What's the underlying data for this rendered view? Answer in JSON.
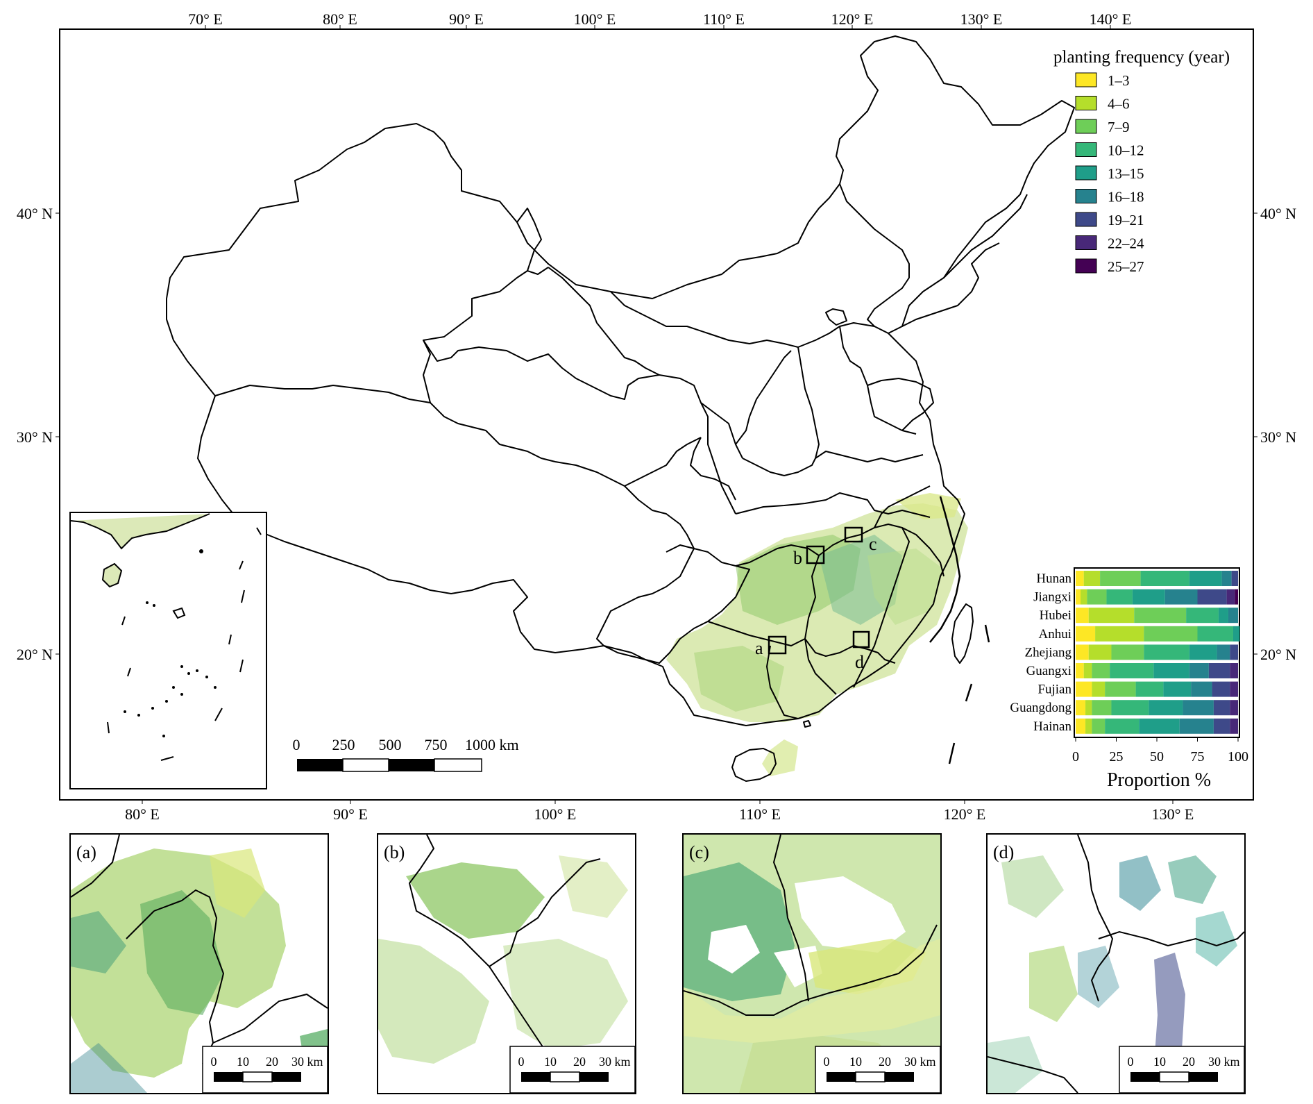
{
  "main_map": {
    "top_lon_ticks": [
      "70° E",
      "80° E",
      "90° E",
      "100° E",
      "110° E",
      "120° E",
      "130° E",
      "140° E"
    ],
    "bottom_lon_ticks": [
      "80° E",
      "90° E",
      "100° E",
      "110° E",
      "120° E",
      "130° E"
    ],
    "left_lat_ticks": [
      "40° N",
      "30° N",
      "20° N"
    ],
    "right_lat_ticks": [
      "40° N",
      "30° N",
      "20° N"
    ],
    "site_markers": [
      "a",
      "b",
      "c",
      "d"
    ],
    "scalebar": {
      "ticks": [
        "0",
        "250",
        "500",
        "750",
        "1000 km"
      ]
    }
  },
  "legend": {
    "title": "planting frequency (year)",
    "items": [
      {
        "label": "1–3",
        "color": "#fde725"
      },
      {
        "label": "4–6",
        "color": "#b5de2b"
      },
      {
        "label": "7–9",
        "color": "#6ece58"
      },
      {
        "label": "10–12",
        "color": "#35b779"
      },
      {
        "label": "13–15",
        "color": "#1f9e89"
      },
      {
        "label": "16–18",
        "color": "#26828e"
      },
      {
        "label": "19–21",
        "color": "#3e4989"
      },
      {
        "label": "22–24",
        "color": "#482878"
      },
      {
        "label": "25–27",
        "color": "#440154"
      }
    ]
  },
  "chart_data": {
    "type": "bar",
    "orientation": "horizontal",
    "stacked": true,
    "categories": [
      "Hunan",
      "Jiangxi",
      "Hubei",
      "Anhui",
      "Zhejiang",
      "Guangxi",
      "Fujian",
      "Guangdong",
      "Hainan"
    ],
    "series": [
      {
        "name": "1–3",
        "values": [
          5,
          3,
          8,
          12,
          8,
          5,
          10,
          6,
          6
        ]
      },
      {
        "name": "4–6",
        "values": [
          10,
          4,
          28,
          30,
          14,
          5,
          8,
          4,
          4
        ]
      },
      {
        "name": "7–9",
        "values": [
          25,
          12,
          32,
          33,
          20,
          11,
          19,
          12,
          8
        ]
      },
      {
        "name": "10–12",
        "values": [
          30,
          16,
          20,
          22,
          28,
          27,
          17,
          23,
          21
        ]
      },
      {
        "name": "13–15",
        "values": [
          20,
          20,
          6,
          4,
          17,
          22,
          17,
          21,
          25
        ]
      },
      {
        "name": "16–18",
        "values": [
          6,
          20,
          6,
          0,
          8,
          12,
          13,
          19,
          21
        ]
      },
      {
        "name": "19–21",
        "values": [
          4,
          18,
          0,
          0,
          5,
          13,
          11,
          10,
          10
        ]
      },
      {
        "name": "22–24",
        "values": [
          0,
          5,
          0,
          0,
          0,
          5,
          5,
          5,
          5
        ]
      },
      {
        "name": "25–27",
        "values": [
          0,
          2,
          0,
          0,
          0,
          0,
          0,
          0,
          0
        ]
      }
    ],
    "xlim": [
      0,
      100
    ],
    "xticks": [
      "0",
      "25",
      "50",
      "75",
      "100"
    ],
    "xlabel": "Proportion %"
  },
  "insets": [
    {
      "label": "(a)",
      "scalebar": [
        "0",
        "10",
        "20",
        "30 km"
      ]
    },
    {
      "label": "(b)",
      "scalebar": [
        "0",
        "10",
        "20",
        "30 km"
      ]
    },
    {
      "label": "(c)",
      "scalebar": [
        "0",
        "10",
        "20",
        "30 km"
      ]
    },
    {
      "label": "(d)",
      "scalebar": [
        "0",
        "10",
        "20",
        "30 km"
      ]
    }
  ]
}
